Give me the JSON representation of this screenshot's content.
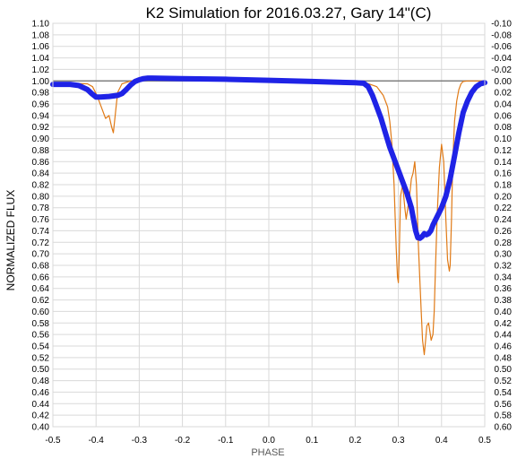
{
  "chart_data": {
    "type": "line",
    "title": "K2 Simulation for 2016.03.27, Gary 14\"(C)",
    "xlabel": "PHASE",
    "ylabel": "NORMALIZED FLUX",
    "xlim": [
      -0.5,
      0.5
    ],
    "ylim": [
      0.4,
      1.1
    ],
    "y2lim": [
      -0.1,
      0.6
    ],
    "x_ticks": [
      "-0.5",
      "-0.4",
      "-0.3",
      "-0.2",
      "-0.1",
      "0.0",
      "0.1",
      "0.2",
      "0.3",
      "0.4",
      "0.5"
    ],
    "y_ticks": [
      "0.40",
      "0.42",
      "0.44",
      "0.46",
      "0.48",
      "0.50",
      "0.52",
      "0.54",
      "0.56",
      "0.58",
      "0.60",
      "0.62",
      "0.64",
      "0.66",
      "0.68",
      "0.70",
      "0.72",
      "0.74",
      "0.76",
      "0.78",
      "0.80",
      "0.82",
      "0.84",
      "0.86",
      "0.88",
      "0.90",
      "0.92",
      "0.94",
      "0.96",
      "0.98",
      "1.00",
      "1.02",
      "1.04",
      "1.06",
      "1.08",
      "1.10"
    ],
    "y2_ticks": [
      "0.60",
      "0.58",
      "0.56",
      "0.54",
      "0.52",
      "0.50",
      "0.48",
      "0.46",
      "0.44",
      "0.42",
      "0.40",
      "0.38",
      "0.36",
      "0.34",
      "0.32",
      "0.30",
      "0.28",
      "0.26",
      "0.24",
      "0.22",
      "0.20",
      "0.18",
      "0.16",
      "0.14",
      "0.12",
      "0.10",
      "0.08",
      "0.06",
      "0.04",
      "0.02",
      "0.00",
      "-0.02",
      "-0.04",
      "-0.06",
      "-0.08",
      "-0.10"
    ],
    "grid": true,
    "reference_line": {
      "y": 1.0,
      "color": "#808080"
    },
    "series": [
      {
        "color": "#e07a16",
        "style": "thin",
        "x": [
          -0.5,
          -0.42,
          -0.408,
          -0.398,
          -0.388,
          -0.378,
          -0.37,
          -0.364,
          -0.36,
          -0.355,
          -0.35,
          -0.34,
          -0.32,
          -0.3,
          -0.25,
          -0.15,
          -0.05,
          0.05,
          0.15,
          0.22,
          0.25,
          0.265,
          0.275,
          0.28,
          0.285,
          0.29,
          0.295,
          0.298,
          0.3,
          0.302,
          0.305,
          0.31,
          0.315,
          0.318,
          0.322,
          0.326,
          0.33,
          0.334,
          0.338,
          0.342,
          0.346,
          0.35,
          0.353,
          0.356,
          0.36,
          0.363,
          0.366,
          0.37,
          0.373,
          0.376,
          0.38,
          0.383,
          0.386,
          0.39,
          0.395,
          0.4,
          0.405,
          0.41,
          0.414,
          0.418,
          0.42,
          0.423,
          0.426,
          0.43,
          0.435,
          0.44,
          0.445,
          0.45,
          0.46,
          0.47,
          0.48,
          0.5
        ],
        "y": [
          0.997,
          0.995,
          0.99,
          0.975,
          0.955,
          0.935,
          0.94,
          0.92,
          0.91,
          0.945,
          0.98,
          0.995,
          1.0,
          1.002,
          1.004,
          1.003,
          1.002,
          1.001,
          1.0,
          0.998,
          0.99,
          0.975,
          0.955,
          0.93,
          0.89,
          0.82,
          0.71,
          0.66,
          0.65,
          0.7,
          0.8,
          0.82,
          0.78,
          0.76,
          0.78,
          0.8,
          0.83,
          0.84,
          0.86,
          0.82,
          0.72,
          0.65,
          0.6,
          0.55,
          0.525,
          0.55,
          0.575,
          0.58,
          0.565,
          0.55,
          0.56,
          0.6,
          0.68,
          0.77,
          0.85,
          0.89,
          0.86,
          0.76,
          0.69,
          0.67,
          0.68,
          0.76,
          0.86,
          0.93,
          0.965,
          0.985,
          0.995,
          0.999,
          1.0,
          1.0,
          1.0,
          1.0
        ]
      },
      {
        "color": "#1f23e6",
        "style": "thick",
        "x": [
          -0.5,
          -0.46,
          -0.44,
          -0.42,
          -0.41,
          -0.4,
          -0.39,
          -0.37,
          -0.35,
          -0.34,
          -0.33,
          -0.32,
          -0.31,
          -0.3,
          -0.29,
          -0.28,
          -0.27,
          -0.2,
          -0.1,
          0.0,
          0.1,
          0.15,
          0.2,
          0.22,
          0.23,
          0.24,
          0.25,
          0.26,
          0.27,
          0.28,
          0.29,
          0.3,
          0.31,
          0.32,
          0.33,
          0.335,
          0.34,
          0.345,
          0.35,
          0.355,
          0.36,
          0.365,
          0.37,
          0.375,
          0.38,
          0.39,
          0.4,
          0.41,
          0.42,
          0.43,
          0.44,
          0.45,
          0.46,
          0.47,
          0.48,
          0.49,
          0.5
        ],
        "y": [
          0.994,
          0.994,
          0.992,
          0.985,
          0.978,
          0.972,
          0.972,
          0.973,
          0.975,
          0.978,
          0.985,
          0.993,
          0.999,
          1.002,
          1.004,
          1.005,
          1.005,
          1.004,
          1.003,
          1.001,
          0.999,
          0.998,
          0.997,
          0.996,
          0.99,
          0.975,
          0.955,
          0.935,
          0.91,
          0.885,
          0.865,
          0.845,
          0.825,
          0.805,
          0.78,
          0.76,
          0.74,
          0.728,
          0.727,
          0.73,
          0.735,
          0.733,
          0.735,
          0.74,
          0.75,
          0.765,
          0.78,
          0.8,
          0.83,
          0.87,
          0.91,
          0.945,
          0.965,
          0.98,
          0.99,
          0.995,
          0.997
        ]
      }
    ]
  }
}
